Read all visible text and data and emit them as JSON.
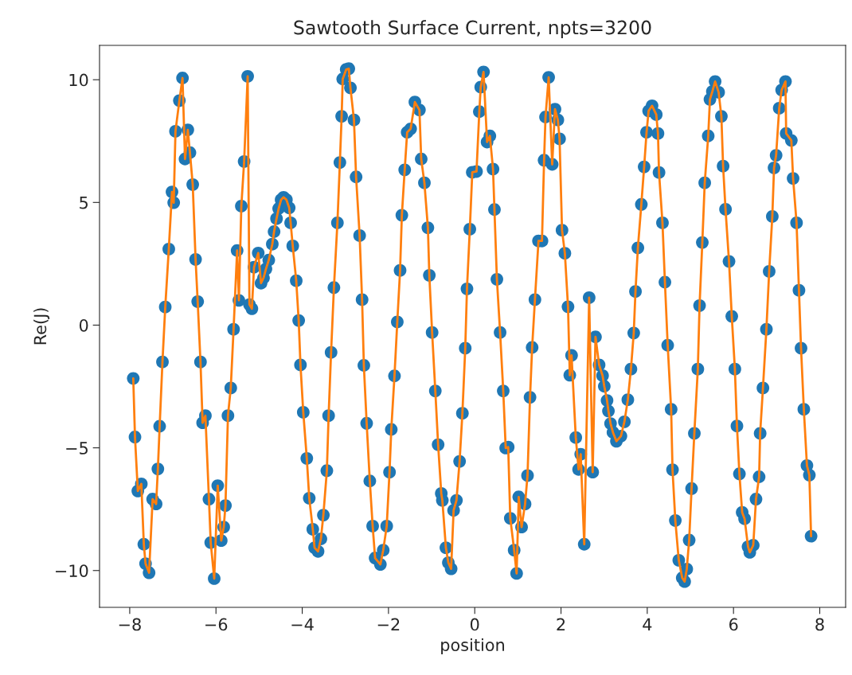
{
  "chart_data": {
    "type": "scatter",
    "title": "Sawtooth Surface Current, npts=3200",
    "xlabel": "position",
    "ylabel": "Re(J)",
    "x": [
      -7.918,
      -7.878,
      -7.812,
      -7.731,
      -7.673,
      -7.633,
      -7.551,
      -7.469,
      -7.388,
      -7.347,
      -7.306,
      -7.241,
      -7.176,
      -7.094,
      -7.02,
      -6.98,
      -6.939,
      -6.849,
      -6.776,
      -6.718,
      -6.653,
      -6.604,
      -6.539,
      -6.473,
      -6.424,
      -6.359,
      -6.31,
      -6.245,
      -6.163,
      -6.122,
      -6.041,
      -5.959,
      -5.878,
      -5.82,
      -5.78,
      -5.722,
      -5.657,
      -5.592,
      -5.51,
      -5.469,
      -5.412,
      -5.347,
      -5.265,
      -5.224,
      -5.167,
      -5.118,
      -5.02,
      -4.955,
      -4.898,
      -4.841,
      -4.776,
      -4.694,
      -4.653,
      -4.596,
      -4.547,
      -4.49,
      -4.433,
      -4.367,
      -4.302,
      -4.269,
      -4.22,
      -4.139,
      -4.082,
      -4.041,
      -3.976,
      -3.894,
      -3.837,
      -3.755,
      -3.714,
      -3.633,
      -3.567,
      -3.51,
      -3.429,
      -3.388,
      -3.331,
      -3.265,
      -3.184,
      -3.127,
      -3.086,
      -3.061,
      -2.98,
      -2.92,
      -2.882,
      -2.8,
      -2.751,
      -2.669,
      -2.612,
      -2.571,
      -2.506,
      -2.433,
      -2.367,
      -2.31,
      -2.188,
      -2.122,
      -2.041,
      -1.976,
      -1.935,
      -1.861,
      -1.796,
      -1.731,
      -1.69,
      -1.624,
      -1.567,
      -1.486,
      -1.388,
      -1.282,
      -1.241,
      -1.167,
      -1.086,
      -1.053,
      -0.988,
      -0.914,
      -0.849,
      -0.776,
      -0.751,
      -0.669,
      -0.612,
      -0.547,
      -0.49,
      -0.424,
      -0.351,
      -0.286,
      -0.22,
      -0.18,
      -0.114,
      -0.057,
      0.041,
      0.106,
      0.139,
      0.204,
      0.286,
      0.351,
      0.424,
      0.457,
      0.514,
      0.588,
      0.661,
      0.718,
      0.776,
      0.824,
      0.914,
      0.971,
      1.02,
      1.086,
      1.167,
      1.224,
      1.282,
      1.331,
      1.396,
      1.478,
      1.559,
      1.608,
      1.641,
      1.714,
      1.796,
      1.861,
      1.927,
      1.967,
      2.024,
      2.09,
      2.163,
      2.204,
      2.245,
      2.343,
      2.408,
      2.457,
      2.539,
      2.653,
      2.735,
      2.8,
      2.884,
      2.964,
      3.004,
      3.068,
      3.1,
      3.149,
      3.205,
      3.285,
      3.39,
      3.47,
      3.55,
      3.622,
      3.687,
      3.727,
      3.783,
      3.863,
      3.928,
      3.984,
      4.032,
      4.112,
      4.209,
      4.249,
      4.273,
      4.353,
      4.41,
      4.474,
      4.554,
      4.586,
      4.651,
      4.731,
      4.811,
      4.867,
      4.916,
      4.972,
      5.028,
      5.092,
      5.173,
      5.213,
      5.277,
      5.333,
      5.414,
      5.454,
      5.51,
      5.574,
      5.655,
      5.719,
      5.759,
      5.815,
      5.896,
      5.96,
      6.032,
      6.08,
      6.137,
      6.201,
      6.257,
      6.337,
      6.378,
      6.458,
      6.522,
      6.594,
      6.618,
      6.683,
      6.763,
      6.827,
      6.9,
      6.94,
      6.988,
      7.06,
      7.116,
      7.205,
      7.221,
      7.341,
      7.382,
      7.462,
      7.518,
      7.566,
      7.631,
      7.703,
      7.759,
      7.799
    ],
    "series": [
      {
        "color": "#1f77b4",
        "values": [
          -2.17,
          -4.56,
          -6.76,
          -6.47,
          -8.93,
          -9.72,
          -10.09,
          -7.09,
          -7.29,
          -5.86,
          -4.12,
          -1.5,
          0.74,
          3.1,
          5.43,
          4.99,
          7.9,
          9.15,
          10.07,
          6.77,
          7.96,
          7.03,
          5.73,
          2.68,
          0.96,
          -1.5,
          -3.98,
          -3.69,
          -7.09,
          -8.86,
          -10.33,
          -6.54,
          -8.78,
          -8.23,
          -7.35,
          -3.69,
          -2.56,
          -0.17,
          3.04,
          1.01,
          4.85,
          6.67,
          10.14,
          0.84,
          0.67,
          2.36,
          2.94,
          1.71,
          1.92,
          2.29,
          2.65,
          3.3,
          3.81,
          4.34,
          4.75,
          5.11,
          5.21,
          5.11,
          4.78,
          4.17,
          3.23,
          1.81,
          0.19,
          -1.62,
          -3.55,
          -5.43,
          -7.05,
          -8.32,
          -9.07,
          -9.22,
          -8.71,
          -7.74,
          -5.93,
          -3.69,
          -1.11,
          1.53,
          4.17,
          6.63,
          8.51,
          10.03,
          10.42,
          10.45,
          9.67,
          8.36,
          6.04,
          3.65,
          1.04,
          -1.64,
          -4.0,
          -6.35,
          -8.19,
          -9.49,
          -9.75,
          -9.17,
          -8.19,
          -5.99,
          -4.25,
          -2.07,
          0.13,
          2.23,
          4.48,
          6.33,
          7.86,
          8.0,
          9.09,
          8.77,
          6.77,
          5.8,
          3.97,
          2.03,
          -0.3,
          -2.68,
          -4.87,
          -6.86,
          -7.14,
          -9.07,
          -9.68,
          -9.93,
          -7.55,
          -7.14,
          -5.55,
          -3.59,
          -0.94,
          1.48,
          3.91,
          6.23,
          6.26,
          8.7,
          9.7,
          10.32,
          7.46,
          7.71,
          6.36,
          4.71,
          1.87,
          -0.3,
          -2.68,
          -5.01,
          -4.97,
          -7.87,
          -9.17,
          -10.12,
          -7.0,
          -8.23,
          -7.29,
          -6.13,
          -2.94,
          -0.91,
          1.04,
          3.43,
          3.43,
          6.72,
          8.48,
          10.1,
          6.55,
          8.8,
          8.36,
          7.59,
          3.87,
          2.93,
          0.75,
          -2.04,
          -1.23,
          -4.58,
          -5.88,
          -5.26,
          -8.93,
          1.12,
          -5.99,
          -0.48,
          -1.62,
          -2.06,
          -2.49,
          -3.07,
          -3.5,
          -4.01,
          -4.37,
          -4.73,
          -4.52,
          -3.94,
          -3.04,
          -1.79,
          -0.32,
          1.37,
          3.15,
          4.92,
          6.45,
          7.86,
          8.73,
          8.94,
          8.58,
          7.81,
          6.22,
          4.17,
          1.75,
          -0.82,
          -3.43,
          -5.89,
          -7.96,
          -9.58,
          -10.3,
          -10.45,
          -9.94,
          -8.76,
          -6.66,
          -4.41,
          -1.79,
          0.8,
          3.37,
          5.8,
          7.71,
          9.2,
          9.52,
          9.93,
          9.49,
          8.51,
          6.48,
          4.72,
          2.6,
          0.36,
          -1.79,
          -4.11,
          -6.06,
          -7.63,
          -7.89,
          -9.03,
          -9.26,
          -8.97,
          -7.09,
          -6.18,
          -4.41,
          -2.56,
          -0.17,
          2.19,
          4.43,
          6.41,
          6.92,
          8.84,
          9.58,
          9.93,
          7.81,
          7.53,
          5.98,
          4.17,
          1.42,
          -0.94,
          -3.43,
          -5.72,
          -6.11,
          -8.6
        ]
      },
      {
        "type": "line",
        "color": "#ff7f0e",
        "values": [
          -2.17,
          -4.56,
          -6.76,
          -6.47,
          -8.93,
          -9.72,
          -10.09,
          -7.09,
          -7.29,
          -5.86,
          -4.12,
          -1.5,
          0.74,
          3.1,
          5.43,
          4.99,
          7.9,
          9.15,
          10.07,
          6.77,
          7.96,
          7.03,
          5.73,
          2.68,
          0.96,
          -1.5,
          -3.98,
          -3.69,
          -7.09,
          -8.86,
          -10.33,
          -6.54,
          -8.78,
          -8.23,
          -7.35,
          -3.69,
          -2.56,
          -0.17,
          3.04,
          1.01,
          4.85,
          6.67,
          10.14,
          0.84,
          0.67,
          2.36,
          2.94,
          1.71,
          1.92,
          2.29,
          2.65,
          3.3,
          3.81,
          4.34,
          4.75,
          5.11,
          5.21,
          5.11,
          4.78,
          4.17,
          3.23,
          1.81,
          0.19,
          -1.62,
          -3.55,
          -5.43,
          -7.05,
          -8.32,
          -9.07,
          -9.22,
          -8.71,
          -7.74,
          -5.93,
          -3.69,
          -1.11,
          1.53,
          4.17,
          6.63,
          8.51,
          10.03,
          10.42,
          10.45,
          9.67,
          8.36,
          6.04,
          3.65,
          1.04,
          -1.64,
          -4.0,
          -6.35,
          -8.19,
          -9.49,
          -9.75,
          -9.17,
          -8.19,
          -5.99,
          -4.25,
          -2.07,
          0.13,
          2.23,
          4.48,
          6.33,
          7.86,
          8.0,
          9.09,
          8.77,
          6.77,
          5.8,
          3.97,
          2.03,
          -0.3,
          -2.68,
          -4.87,
          -6.86,
          -7.14,
          -9.07,
          -9.68,
          -9.93,
          -7.55,
          -7.14,
          -5.55,
          -3.59,
          -0.94,
          1.48,
          3.91,
          6.23,
          6.26,
          8.7,
          9.7,
          10.32,
          7.46,
          7.71,
          6.36,
          4.71,
          1.87,
          -0.3,
          -2.68,
          -5.01,
          -4.97,
          -7.87,
          -9.17,
          -10.12,
          -7.0,
          -8.23,
          -7.29,
          -6.13,
          -2.94,
          -0.91,
          1.04,
          3.43,
          3.43,
          6.72,
          8.48,
          10.1,
          6.55,
          8.8,
          8.36,
          7.59,
          3.87,
          2.93,
          0.75,
          -2.04,
          -1.23,
          -4.58,
          -5.88,
          -5.26,
          -8.93,
          1.12,
          -5.99,
          -0.48,
          -1.62,
          -2.06,
          -2.49,
          -3.07,
          -3.5,
          -4.01,
          -4.37,
          -4.73,
          -4.52,
          -3.94,
          -3.04,
          -1.79,
          -0.32,
          1.37,
          3.15,
          4.92,
          6.45,
          7.86,
          8.73,
          8.94,
          8.58,
          7.81,
          6.22,
          4.17,
          1.75,
          -0.82,
          -3.43,
          -5.89,
          -7.96,
          -9.58,
          -10.3,
          -10.45,
          -9.94,
          -8.76,
          -6.66,
          -4.41,
          -1.79,
          0.8,
          3.37,
          5.8,
          7.71,
          9.2,
          9.52,
          9.93,
          9.49,
          8.51,
          6.48,
          4.72,
          2.6,
          0.36,
          -1.79,
          -4.11,
          -6.06,
          -7.63,
          -7.89,
          -9.03,
          -9.26,
          -8.97,
          -7.09,
          -6.18,
          -4.41,
          -2.56,
          -0.17,
          2.19,
          4.43,
          6.41,
          6.92,
          8.84,
          9.58,
          9.93,
          7.81,
          7.53,
          5.98,
          4.17,
          1.42,
          -0.94,
          -3.43,
          -5.72,
          -6.11,
          -8.6
        ]
      }
    ],
    "xlim": [
      -8.7,
      8.6
    ],
    "xticks": [
      -8,
      -6,
      -4,
      -2,
      0,
      2,
      4,
      6,
      8
    ],
    "ylim": [
      -11.5,
      11.4
    ],
    "yticks": [
      10,
      5,
      0,
      -5,
      -10
    ],
    "grid": false,
    "legend": false
  }
}
